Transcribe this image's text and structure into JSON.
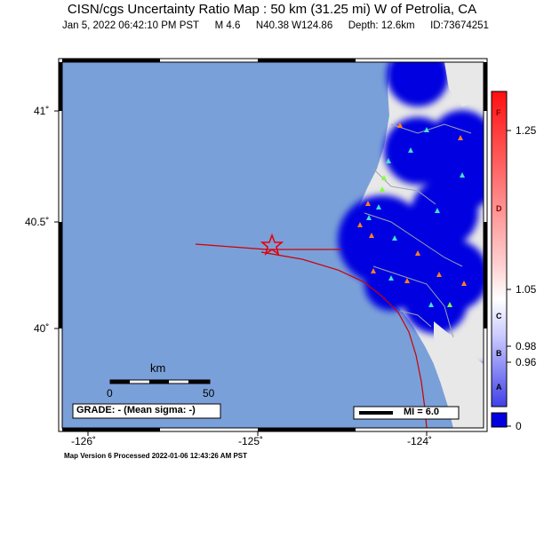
{
  "map": {
    "title": "CISN/cgs Uncertainty Ratio Map : 50 km (31.25 mi) W of Petrolia, CA",
    "event_time": "Jan  5, 2022 06:42:10 PM PST",
    "magnitude": "M 4.6",
    "location": "N40.38 W124.86",
    "depth": "Depth: 12.6km",
    "event_id": "ID:73674251",
    "lat_labels": [
      "41˚",
      "40.5˚",
      "40˚"
    ],
    "lon_labels": [
      "-126˚",
      "-125˚",
      "-124˚"
    ],
    "scale_unit": "km",
    "scale_ticks": [
      "0",
      "50"
    ],
    "grade_text": "GRADE: - (Mean sigma: -)",
    "mi_legend": "MI = 6.0",
    "footer": "Map Version 6 Processed 2022-01-06 12:43:26 AM PST"
  },
  "colorbar": {
    "values": [
      "1.25",
      "1.05",
      "0.98",
      "0.96",
      "0"
    ],
    "letters": [
      "F",
      "D",
      "C",
      "B",
      "A"
    ]
  },
  "colors": {
    "ocean": "#7aa0d9",
    "land": "#e8e8e8",
    "uncertainty": "#0000e0",
    "fault": "#cc0000",
    "epicenter": "#e8000a",
    "station_cyan": "#40e0d0",
    "station_orange": "#ff7f20",
    "station_green": "#80ff40"
  }
}
